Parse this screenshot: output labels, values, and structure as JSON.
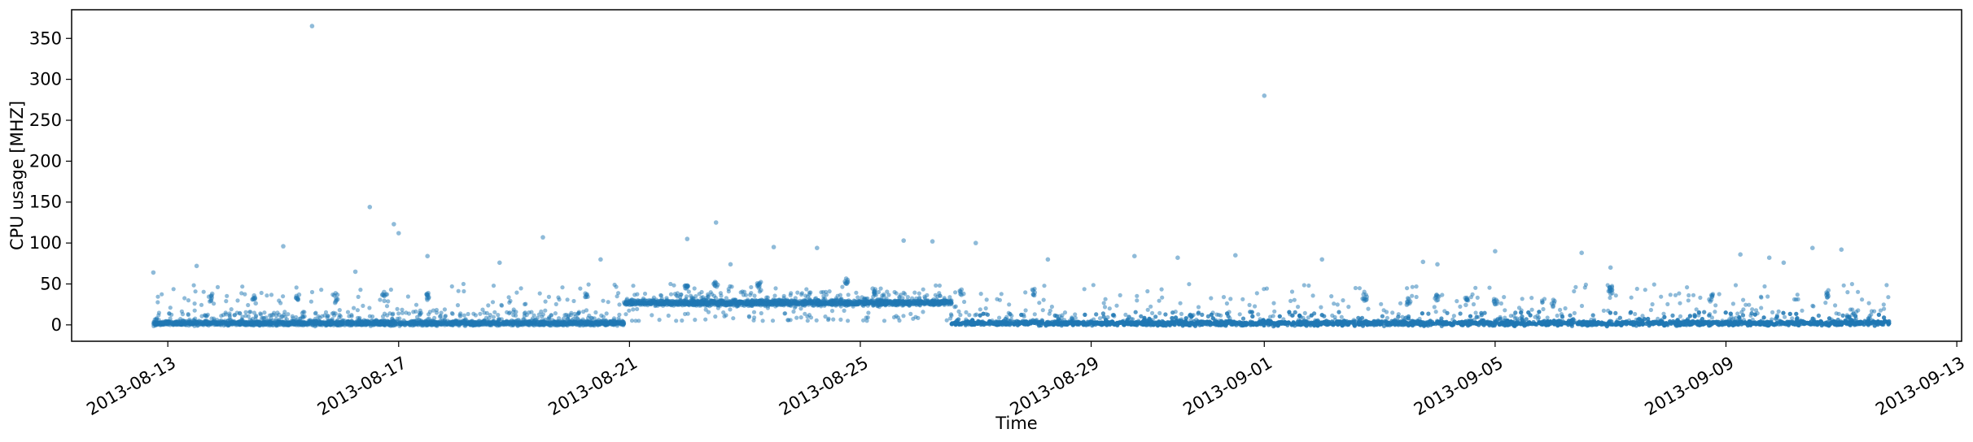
{
  "chart_data": {
    "type": "scatter",
    "title": "",
    "xlabel": "Time",
    "ylabel": "CPU usage [MHZ]",
    "xlim": [
      "2013-08-11T08:00",
      "2013-09-13T02:00"
    ],
    "ylim": [
      -20,
      385
    ],
    "x_ticks": [
      "2013-08-13",
      "2013-08-17",
      "2013-08-21",
      "2013-08-25",
      "2013-08-29",
      "2013-09-01",
      "2013-09-05",
      "2013-09-09",
      "2013-09-13"
    ],
    "y_ticks": [
      0,
      50,
      100,
      150,
      200,
      250,
      300,
      350
    ],
    "grid": false,
    "legend": "none",
    "marker_color": "#1f77b4",
    "marker_alpha": 0.5,
    "series": [
      {
        "x_start": "2013-08-12T18:00",
        "x_end": "2013-09-11T20:00",
        "baseline_segments": [
          {
            "from": "2013-08-12T18:00",
            "to": "2013-08-20T22:00",
            "level": 2,
            "spread": 4
          },
          {
            "from": "2013-08-20T22:00",
            "to": "2013-08-26T14:00",
            "level": 27,
            "spread": 5
          },
          {
            "from": "2013-08-26T14:00",
            "to": "2013-09-11T20:00",
            "level": 2,
            "spread": 4
          }
        ],
        "notable_points": [
          {
            "x": "2013-08-15T12:00",
            "y": 365
          },
          {
            "x": "2013-09-01T00:00",
            "y": 280
          },
          {
            "x": "2013-08-16T12:00",
            "y": 144
          },
          {
            "x": "2013-08-16T22:00",
            "y": 123
          },
          {
            "x": "2013-08-22T12:00",
            "y": 125
          },
          {
            "x": "2013-08-17T00:00",
            "y": 112
          },
          {
            "x": "2013-08-19T12:00",
            "y": 107
          },
          {
            "x": "2013-08-22T00:00",
            "y": 105
          },
          {
            "x": "2013-08-25T18:00",
            "y": 103
          },
          {
            "x": "2013-08-26T06:00",
            "y": 102
          },
          {
            "x": "2013-08-27T00:00",
            "y": 100
          },
          {
            "x": "2013-08-15T00:00",
            "y": 96
          },
          {
            "x": "2013-08-23T12:00",
            "y": 95
          },
          {
            "x": "2013-08-24T06:00",
            "y": 94
          },
          {
            "x": "2013-09-10T12:00",
            "y": 94
          },
          {
            "x": "2013-09-11T00:00",
            "y": 92
          },
          {
            "x": "2013-09-05T00:00",
            "y": 90
          },
          {
            "x": "2013-09-06T12:00",
            "y": 88
          },
          {
            "x": "2013-09-09T06:00",
            "y": 86
          },
          {
            "x": "2013-08-31T12:00",
            "y": 85
          },
          {
            "x": "2013-08-29T18:00",
            "y": 84
          },
          {
            "x": "2013-08-17T12:00",
            "y": 84
          },
          {
            "x": "2013-09-09T18:00",
            "y": 82
          },
          {
            "x": "2013-08-30T12:00",
            "y": 82
          },
          {
            "x": "2013-08-28T06:00",
            "y": 80
          },
          {
            "x": "2013-09-02T00:00",
            "y": 80
          },
          {
            "x": "2013-08-20T12:00",
            "y": 80
          },
          {
            "x": "2013-09-03T18:00",
            "y": 77
          },
          {
            "x": "2013-08-18T18:00",
            "y": 76
          },
          {
            "x": "2013-09-10T00:00",
            "y": 76
          },
          {
            "x": "2013-09-04T00:00",
            "y": 74
          },
          {
            "x": "2013-08-22T18:00",
            "y": 74
          },
          {
            "x": "2013-08-12T18:00",
            "y": 64
          },
          {
            "x": "2013-09-07T00:00",
            "y": 70
          },
          {
            "x": "2013-08-13T12:00",
            "y": 72
          },
          {
            "x": "2013-08-16T06:00",
            "y": 65
          }
        ],
        "clusters": [
          {
            "x": "2013-08-13T18:00",
            "y": 34,
            "n": 8
          },
          {
            "x": "2013-08-14T12:00",
            "y": 32,
            "n": 8
          },
          {
            "x": "2013-08-15T06:00",
            "y": 34,
            "n": 8
          },
          {
            "x": "2013-08-15T22:00",
            "y": 33,
            "n": 8
          },
          {
            "x": "2013-08-16T18:00",
            "y": 35,
            "n": 8
          },
          {
            "x": "2013-08-17T12:00",
            "y": 36,
            "n": 10
          },
          {
            "x": "2013-08-20T06:00",
            "y": 36,
            "n": 6
          },
          {
            "x": "2013-08-22T00:00",
            "y": 45,
            "n": 10
          },
          {
            "x": "2013-08-22T12:00",
            "y": 48,
            "n": 8
          },
          {
            "x": "2013-08-23T06:00",
            "y": 48,
            "n": 10
          },
          {
            "x": "2013-08-24T18:00",
            "y": 52,
            "n": 8
          },
          {
            "x": "2013-08-25T06:00",
            "y": 40,
            "n": 8
          },
          {
            "x": "2013-08-26T18:00",
            "y": 40,
            "n": 6
          },
          {
            "x": "2013-08-28T00:00",
            "y": 38,
            "n": 6
          },
          {
            "x": "2013-09-02T18:00",
            "y": 32,
            "n": 8
          },
          {
            "x": "2013-09-03T12:00",
            "y": 28,
            "n": 8
          },
          {
            "x": "2013-09-04T00:00",
            "y": 35,
            "n": 8
          },
          {
            "x": "2013-09-04T12:00",
            "y": 30,
            "n": 8
          },
          {
            "x": "2013-09-05T00:00",
            "y": 28,
            "n": 8
          },
          {
            "x": "2013-09-06T00:00",
            "y": 26,
            "n": 6
          },
          {
            "x": "2013-09-07T00:00",
            "y": 42,
            "n": 12
          },
          {
            "x": "2013-09-08T18:00",
            "y": 34,
            "n": 6
          },
          {
            "x": "2013-09-10T18:00",
            "y": 38,
            "n": 8
          }
        ]
      }
    ]
  }
}
